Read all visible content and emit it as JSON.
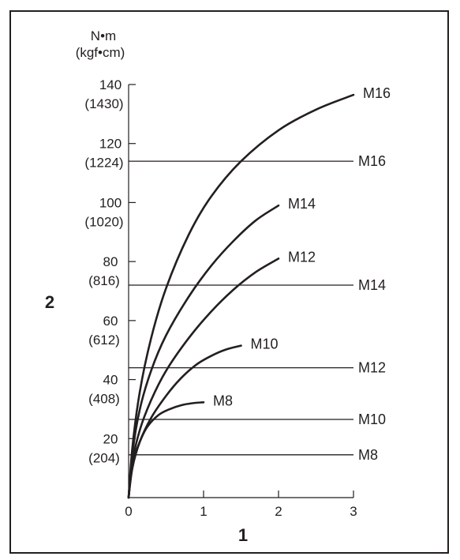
{
  "chart_data": {
    "type": "line",
    "x_axis": {
      "name": "1",
      "range": [
        0,
        3
      ],
      "ticks": [
        0,
        1,
        2,
        3
      ]
    },
    "y_axis": {
      "name": "2",
      "unit_line1": "N•m",
      "unit_line2": "(kgf•cm)",
      "range": [
        0,
        140
      ],
      "ticks": [
        {
          "value": 20,
          "label": "20",
          "sub": "(204)"
        },
        {
          "value": 40,
          "label": "40",
          "sub": "(408)"
        },
        {
          "value": 60,
          "label": "60",
          "sub": "(612)"
        },
        {
          "value": 80,
          "label": "80",
          "sub": "(816)"
        },
        {
          "value": 100,
          "label": "100",
          "sub": "(1020)"
        },
        {
          "value": 120,
          "label": "120",
          "sub": "(1224)"
        },
        {
          "value": 140,
          "label": "140",
          "sub": "(1430)"
        }
      ]
    },
    "grid": false,
    "series": [
      {
        "name": "M8",
        "x": [
          0,
          0.03,
          0.08,
          0.15,
          0.25,
          0.4,
          0.55,
          0.7,
          0.85,
          1.0
        ],
        "y": [
          0,
          8,
          14,
          19,
          24,
          28,
          30,
          31.3,
          32,
          32.3
        ]
      },
      {
        "name": "M10",
        "x": [
          0,
          0.05,
          0.15,
          0.3,
          0.5,
          0.7,
          0.9,
          1.1,
          1.3,
          1.5
        ],
        "y": [
          0,
          10,
          19,
          27,
          34.5,
          40.5,
          45,
          48,
          50.2,
          51.5
        ]
      },
      {
        "name": "M12",
        "x": [
          0,
          0.05,
          0.15,
          0.3,
          0.5,
          0.8,
          1.1,
          1.4,
          1.7,
          2.0
        ],
        "y": [
          0,
          12,
          23,
          33,
          43,
          54,
          63,
          70.5,
          76.5,
          81
        ]
      },
      {
        "name": "M14",
        "x": [
          0,
          0.05,
          0.15,
          0.3,
          0.5,
          0.8,
          1.1,
          1.4,
          1.7,
          2.0
        ],
        "y": [
          0,
          15,
          30,
          43,
          55,
          68,
          78.5,
          87,
          94,
          99
        ]
      },
      {
        "name": "M16",
        "x": [
          0,
          0.05,
          0.15,
          0.3,
          0.5,
          0.8,
          1.1,
          1.5,
          2.0,
          2.5,
          3.0
        ],
        "y": [
          0,
          17,
          36,
          54,
          71,
          89,
          102,
          114,
          124.5,
          131.5,
          136.5
        ]
      }
    ],
    "reference_lines": [
      {
        "name": "M16",
        "y": 114
      },
      {
        "name": "M14",
        "y": 72
      },
      {
        "name": "M12",
        "y": 44
      },
      {
        "name": "M10",
        "y": 26.5
      },
      {
        "name": "M8",
        "y": 14.5
      }
    ]
  }
}
